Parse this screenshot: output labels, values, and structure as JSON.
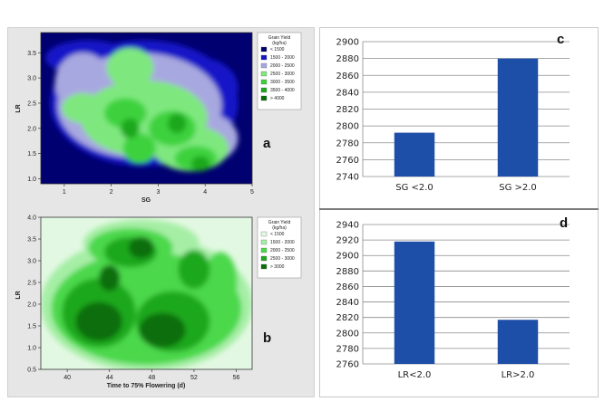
{
  "panels": {
    "a": {
      "letter": "a"
    },
    "b": {
      "letter": "b"
    },
    "c": {
      "letter": "c"
    },
    "d": {
      "letter": "d"
    }
  },
  "chart_data": [
    {
      "id": "a",
      "type": "heatmap",
      "xlabel": "SG",
      "ylabel": "LR",
      "xlim": [
        0.5,
        5
      ],
      "ylim": [
        0.9,
        3.9
      ],
      "xticks": [
        "1",
        "2",
        "3",
        "4",
        "5"
      ],
      "yticks": [
        "1.0",
        "1.5",
        "2.0",
        "2.5",
        "3.0",
        "3.5"
      ],
      "legend": {
        "title": "Grain Yield (kg/ha)",
        "position": "top-right",
        "entries": [
          {
            "label": "< 1500",
            "color": "#000070"
          },
          {
            "label": "1500 - 2000",
            "color": "#1515c8"
          },
          {
            "label": "2000 - 2500",
            "color": "#a8a8e0"
          },
          {
            "label": "2500 - 3000",
            "color": "#7ee87e"
          },
          {
            "label": "3000 - 3500",
            "color": "#3cd23c"
          },
          {
            "label": "3500 - 4000",
            "color": "#1fa81f"
          },
          {
            "label": "> 4000",
            "color": "#0a6e0a"
          }
        ]
      },
      "blobs": [
        {
          "x": 2.7,
          "y": 2.5,
          "rx": 2.0,
          "ry": 1.25,
          "level": 1
        },
        {
          "x": 1.5,
          "y": 3.4,
          "rx": 0.9,
          "ry": 0.35,
          "level": 1
        },
        {
          "x": 3.9,
          "y": 2.8,
          "rx": 0.8,
          "ry": 0.6,
          "level": 1
        },
        {
          "x": 2.6,
          "y": 2.45,
          "rx": 1.75,
          "ry": 1.05,
          "level": 2
        },
        {
          "x": 1.4,
          "y": 2.9,
          "rx": 0.6,
          "ry": 0.6,
          "level": 2
        },
        {
          "x": 3.8,
          "y": 1.8,
          "rx": 0.9,
          "ry": 0.55,
          "level": 2
        },
        {
          "x": 2.7,
          "y": 2.2,
          "rx": 1.35,
          "ry": 0.75,
          "level": 3
        },
        {
          "x": 1.4,
          "y": 2.4,
          "rx": 0.45,
          "ry": 0.3,
          "level": 3
        },
        {
          "x": 3.7,
          "y": 1.6,
          "rx": 0.8,
          "ry": 0.45,
          "level": 3
        },
        {
          "x": 2.4,
          "y": 3.2,
          "rx": 0.5,
          "ry": 0.4,
          "level": 3
        },
        {
          "x": 2.3,
          "y": 2.3,
          "rx": 0.45,
          "ry": 0.3,
          "level": 4
        },
        {
          "x": 3.3,
          "y": 2.0,
          "rx": 0.5,
          "ry": 0.35,
          "level": 4
        },
        {
          "x": 3.8,
          "y": 1.4,
          "rx": 0.45,
          "ry": 0.25,
          "level": 4
        },
        {
          "x": 2.6,
          "y": 1.6,
          "rx": 0.35,
          "ry": 0.3,
          "level": 4
        },
        {
          "x": 2.4,
          "y": 2.0,
          "rx": 0.2,
          "ry": 0.2,
          "level": 5
        },
        {
          "x": 3.4,
          "y": 2.1,
          "rx": 0.2,
          "ry": 0.2,
          "level": 5
        },
        {
          "x": 3.9,
          "y": 1.3,
          "rx": 0.2,
          "ry": 0.15,
          "level": 5
        },
        {
          "x": 4.0,
          "y": 2.8,
          "rx": 0.12,
          "ry": 0.15,
          "level": 0
        },
        {
          "x": 3.4,
          "y": 2.4,
          "rx": 0.1,
          "ry": 0.1,
          "level": 0
        },
        {
          "x": 1.3,
          "y": 2.0,
          "rx": 0.12,
          "ry": 0.1,
          "level": 1
        }
      ]
    },
    {
      "id": "b",
      "type": "heatmap",
      "xlabel": "Time to 75% Flowering (d)",
      "ylabel": "LR",
      "xlim": [
        37.5,
        57.5
      ],
      "ylim": [
        0.5,
        4.0
      ],
      "xticks": [
        "40",
        "44",
        "48",
        "52",
        "56"
      ],
      "yticks": [
        "0.5",
        "1.0",
        "1.5",
        "2.0",
        "2.5",
        "3.0",
        "3.5",
        "4.0"
      ],
      "legend": {
        "title": "Grain Yield (kg/ha)",
        "position": "top-right",
        "entries": [
          {
            "label": "< 1500",
            "color": "#e2f8e2"
          },
          {
            "label": "1500 - 2000",
            "color": "#a6eea6"
          },
          {
            "label": "2000 - 2500",
            "color": "#4cd84c"
          },
          {
            "label": "2500 - 3000",
            "color": "#1fa81f"
          },
          {
            "label": "> 3000",
            "color": "#0a6e0a"
          }
        ]
      },
      "blobs": [
        {
          "x": 47.5,
          "y": 2.0,
          "rx": 10.0,
          "ry": 1.55,
          "level": 1
        },
        {
          "x": 47.0,
          "y": 3.4,
          "rx": 5.5,
          "ry": 0.55,
          "level": 1
        },
        {
          "x": 47.5,
          "y": 1.9,
          "rx": 9.0,
          "ry": 1.3,
          "level": 2
        },
        {
          "x": 46.0,
          "y": 3.3,
          "rx": 4.0,
          "ry": 0.45,
          "level": 2
        },
        {
          "x": 54.5,
          "y": 2.5,
          "rx": 1.6,
          "ry": 0.7,
          "level": 2
        },
        {
          "x": 43.0,
          "y": 1.8,
          "rx": 3.5,
          "ry": 0.8,
          "level": 3
        },
        {
          "x": 50.0,
          "y": 1.6,
          "rx": 3.5,
          "ry": 0.7,
          "level": 3
        },
        {
          "x": 46.0,
          "y": 3.2,
          "rx": 2.5,
          "ry": 0.35,
          "level": 3
        },
        {
          "x": 52.0,
          "y": 2.8,
          "rx": 1.5,
          "ry": 0.45,
          "level": 3
        },
        {
          "x": 43.0,
          "y": 1.6,
          "rx": 2.2,
          "ry": 0.45,
          "level": 4
        },
        {
          "x": 49.0,
          "y": 1.4,
          "rx": 2.2,
          "ry": 0.4,
          "level": 4
        },
        {
          "x": 47.0,
          "y": 3.3,
          "rx": 1.2,
          "ry": 0.25,
          "level": 4
        },
        {
          "x": 44.0,
          "y": 2.6,
          "rx": 1.0,
          "ry": 0.3,
          "level": 4
        },
        {
          "x": 47.0,
          "y": 2.6,
          "rx": 0.8,
          "ry": 0.35,
          "level": 1
        },
        {
          "x": 50.5,
          "y": 2.4,
          "rx": 0.6,
          "ry": 0.3,
          "level": 1
        },
        {
          "x": 47.5,
          "y": 3.7,
          "rx": 0.25,
          "ry": 0.15,
          "level": 0
        }
      ]
    },
    {
      "id": "c",
      "type": "bar",
      "categories": [
        "SG <2.0",
        "SG >2.0"
      ],
      "values": [
        2792,
        2880
      ],
      "ylim": [
        2740,
        2900
      ],
      "yticks": [
        "2740",
        "2760",
        "2780",
        "2800",
        "2820",
        "2840",
        "2860",
        "2880",
        "2900"
      ],
      "bar_color": "#1e4fa8",
      "grid": true
    },
    {
      "id": "d",
      "type": "bar",
      "categories": [
        "LR<2.0",
        "LR>2.0"
      ],
      "values": [
        2918,
        2817
      ],
      "ylim": [
        2760,
        2940
      ],
      "yticks": [
        "2760",
        "2780",
        "2800",
        "2820",
        "2840",
        "2860",
        "2880",
        "2900",
        "2920",
        "2940"
      ],
      "bar_color": "#1e4fa8",
      "grid": true
    }
  ]
}
